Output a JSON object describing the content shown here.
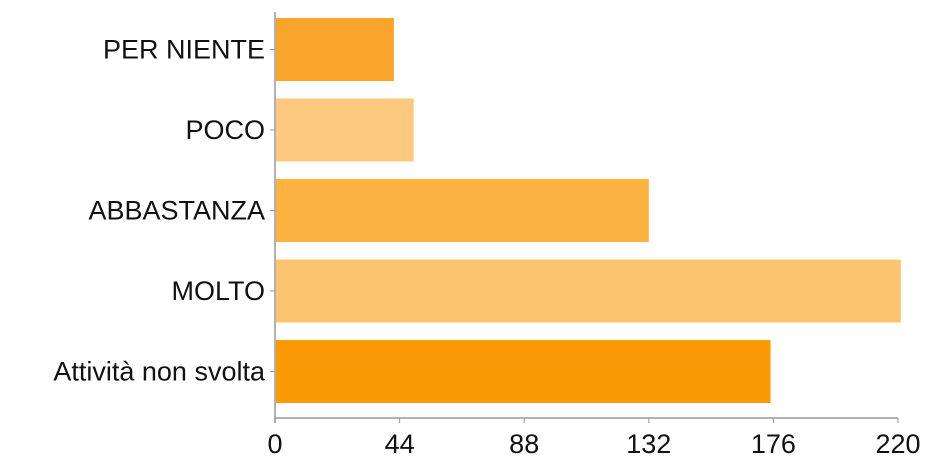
{
  "chart_data": {
    "type": "bar",
    "orientation": "horizontal",
    "categories": [
      "PER NIENTE",
      "POCO",
      "ABBASTANZA",
      "MOLTO",
      "Attività non svolta"
    ],
    "values": [
      42,
      49,
      132,
      221,
      175
    ],
    "colors": [
      "#f9a42a",
      "#fdc981",
      "#fbb240",
      "#fdc46f",
      "#fb9a07"
    ],
    "xticks": [
      "0",
      "44",
      "88",
      "132",
      "176",
      "220"
    ],
    "xlim": [
      0,
      220
    ],
    "grid": false,
    "legend": "none"
  }
}
